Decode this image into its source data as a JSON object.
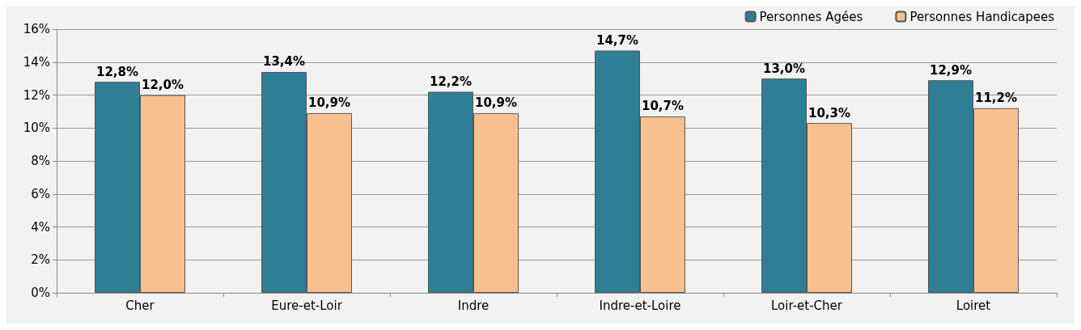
{
  "chart_data": {
    "type": "bar",
    "categories": [
      "Cher",
      "Eure-et-Loir",
      "Indre",
      "Indre-et-Loire",
      "Loir-et-Cher",
      "Loiret"
    ],
    "series": [
      {
        "name": "Personnes Agées",
        "color": "#2e7f96",
        "values": [
          12.8,
          13.4,
          12.2,
          14.7,
          13.0,
          12.9
        ],
        "value_labels": [
          "12,8%",
          "13,4%",
          "12,2%",
          "14,7%",
          "13,0%",
          "12,9%"
        ]
      },
      {
        "name": "Personnes Handicapees",
        "color": "#f9c08f",
        "values": [
          12.0,
          10.9,
          10.9,
          10.7,
          10.3,
          11.2
        ],
        "value_labels": [
          "12,0%",
          "10,9%",
          "10,9%",
          "10,7%",
          "10,3%",
          "11,2%"
        ]
      }
    ],
    "ylim": [
      0,
      16
    ],
    "yticks": [
      {
        "value": 0,
        "label": "0%"
      },
      {
        "value": 2,
        "label": "2%"
      },
      {
        "value": 4,
        "label": "4%"
      },
      {
        "value": 6,
        "label": "6%"
      },
      {
        "value": 8,
        "label": "8%"
      },
      {
        "value": 10,
        "label": "10%"
      },
      {
        "value": 12,
        "label": "12%"
      },
      {
        "value": 14,
        "label": "14%"
      },
      {
        "value": 16,
        "label": "16%"
      }
    ],
    "grid": "y",
    "legend": "top right"
  }
}
